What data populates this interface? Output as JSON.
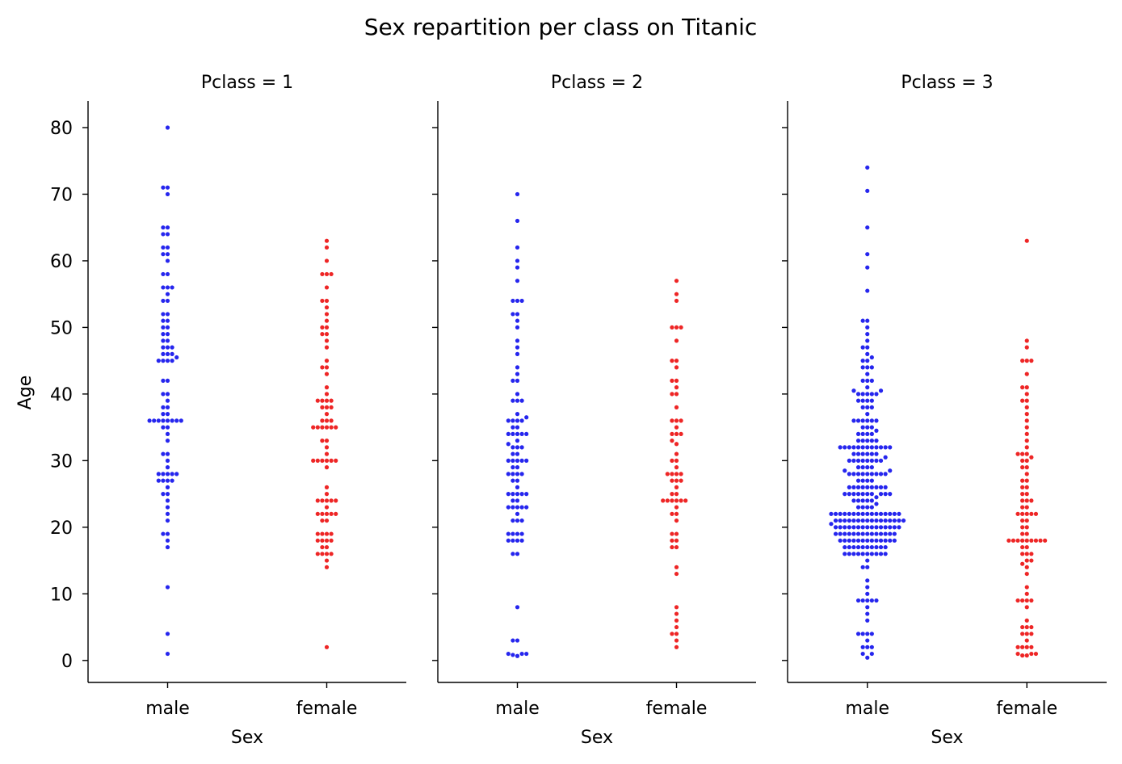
{
  "chart_data": {
    "type": "swarm",
    "title": "Sex repartition per class on Titanic",
    "ylabel": "Age",
    "xlabel": "Sex",
    "categories": [
      "male",
      "female"
    ],
    "ylim": [
      -3.3,
      84
    ],
    "yticks": [
      0,
      10,
      20,
      30,
      40,
      50,
      60,
      70,
      80
    ],
    "colors": {
      "male": "#2626ee",
      "female": "#ee2626"
    },
    "facets": [
      {
        "label": "Pclass = 1",
        "series": [
          {
            "name": "male",
            "ages": [
              80,
              71,
              71,
              70,
              65,
              65,
              64,
              64,
              62,
              62,
              61,
              61,
              60,
              58,
              58,
              56,
              56,
              56,
              55,
              54,
              54,
              52,
              52,
              51,
              51,
              50,
              50,
              49,
              49,
              48,
              48,
              47,
              47,
              47,
              46,
              46,
              46,
              45.5,
              45,
              45,
              45,
              45,
              42,
              42,
              40,
              40,
              39,
              38,
              38,
              37,
              37,
              36,
              36,
              36,
              36,
              36,
              36,
              36,
              36,
              35,
              35,
              34,
              33,
              31,
              31,
              30,
              29,
              28,
              28,
              28,
              28,
              28,
              27,
              27,
              27,
              27,
              26,
              25,
              25,
              24,
              23,
              22,
              21,
              19,
              19,
              18,
              17,
              11,
              4,
              1
            ]
          },
          {
            "name": "female",
            "ages": [
              63,
              62,
              60,
              58,
              58,
              58,
              56,
              54,
              54,
              53,
              52,
              51,
              50,
              50,
              49,
              49,
              48,
              47,
              45,
              44,
              44,
              43,
              41,
              40,
              39,
              39,
              39,
              39,
              38,
              38,
              38,
              37,
              36,
              36,
              36,
              35,
              35,
              35,
              35,
              35,
              35,
              33,
              33,
              32,
              31,
              30,
              30,
              30,
              30,
              30,
              30,
              29,
              26,
              25,
              24,
              24,
              24,
              24,
              24,
              23,
              22,
              22,
              22,
              22,
              22,
              21,
              21,
              19,
              19,
              19,
              19,
              18,
              18,
              18,
              18,
              17,
              17,
              16,
              16,
              16,
              16,
              15,
              14,
              2
            ]
          }
        ]
      },
      {
        "label": "Pclass = 2",
        "series": [
          {
            "name": "male",
            "ages": [
              70,
              66,
              62,
              60,
              59,
              57,
              54,
              54,
              54,
              52,
              52,
              51,
              50,
              48,
              47,
              46,
              44,
              43,
              42,
              42,
              40,
              39,
              39,
              39,
              37,
              36.5,
              36,
              36,
              36,
              36,
              35,
              35,
              34,
              34,
              34,
              34,
              34,
              33,
              32.5,
              32,
              32,
              32,
              31,
              31,
              30,
              30,
              30,
              30,
              30,
              29,
              29,
              28,
              28,
              28,
              28,
              27,
              27,
              26,
              25,
              25,
              25,
              25,
              25,
              24,
              24,
              23,
              23,
              23,
              23,
              23,
              22,
              21,
              21,
              21,
              19,
              19,
              19,
              19,
              18,
              18,
              18,
              18,
              16,
              16,
              8,
              3,
              3,
              1,
              1,
              1,
              0.83,
              0.67
            ]
          },
          {
            "name": "female",
            "ages": [
              57,
              55,
              54,
              50,
              50,
              50,
              48,
              45,
              45,
              44,
              42,
              42,
              41,
              40,
              40,
              38,
              36,
              36,
              36,
              35,
              34,
              34,
              34,
              33,
              32.5,
              31,
              30,
              30,
              29,
              28,
              28,
              28,
              28,
              27,
              27,
              27,
              26,
              25,
              25,
              24,
              24,
              24,
              24,
              24,
              24,
              23,
              22,
              22,
              21,
              19,
              19,
              18,
              18,
              17,
              17,
              14,
              13,
              8,
              7,
              6,
              5,
              4,
              4,
              3,
              2
            ]
          }
        ]
      },
      {
        "label": "Pclass = 3",
        "series": [
          {
            "name": "male",
            "ages": [
              74,
              70.5,
              65,
              61,
              59,
              55.5,
              51,
              51,
              50,
              49,
              48,
              47,
              47,
              46,
              45.5,
              45,
              45,
              44,
              44,
              44,
              43,
              42,
              42,
              42,
              41,
              40.5,
              40.5,
              40,
              40,
              40,
              40,
              40,
              39,
              39,
              39,
              39,
              38,
              38,
              38,
              37,
              36,
              36,
              36,
              36,
              36,
              36,
              35,
              35,
              35,
              34.5,
              34,
              34,
              34,
              34,
              33,
              33,
              33,
              33,
              33,
              32,
              32,
              32,
              32,
              32,
              32,
              32,
              32,
              32,
              32,
              32,
              32,
              31,
              31,
              31,
              31,
              31,
              31,
              30.5,
              30,
              30,
              30,
              30,
              30,
              30,
              30,
              30,
              29,
              29,
              29,
              29,
              28.5,
              28.5,
              28,
              28,
              28,
              28,
              28,
              28,
              28,
              28,
              28,
              27,
              27,
              27,
              27,
              26,
              26,
              26,
              26,
              26,
              26,
              26,
              26,
              26,
              25,
              25,
              25,
              25,
              25,
              25,
              25,
              25,
              25,
              25,
              24.5,
              24,
              24,
              24,
              24,
              24,
              23.5,
              23,
              23,
              23,
              23,
              22,
              22,
              22,
              22,
              22,
              22,
              22,
              22,
              22,
              22,
              22,
              22,
              22,
              22,
              22,
              22,
              21,
              21,
              21,
              21,
              21,
              21,
              21,
              21,
              21,
              21,
              21,
              21,
              21,
              21,
              21,
              21,
              20.5,
              20,
              20,
              20,
              20,
              20,
              20,
              20,
              20,
              20,
              20,
              20,
              20,
              20,
              20,
              20,
              19,
              19,
              19,
              19,
              19,
              19,
              19,
              19,
              19,
              19,
              19,
              19,
              19,
              19,
              18,
              18,
              18,
              18,
              18,
              18,
              18,
              18,
              18,
              18,
              18,
              18,
              18,
              17,
              17,
              17,
              17,
              17,
              17,
              17,
              17,
              17,
              17,
              16,
              16,
              16,
              16,
              16,
              16,
              16,
              16,
              16,
              16,
              15,
              14,
              14,
              12,
              11,
              10,
              9,
              9,
              9,
              9,
              9,
              8,
              7,
              6,
              4,
              4,
              4,
              4,
              3,
              2,
              2,
              2,
              1,
              1,
              0.42
            ]
          },
          {
            "name": "female",
            "ages": [
              63,
              48,
              47,
              45,
              45,
              45,
              43,
              41,
              41,
              40,
              39,
              39,
              38,
              37,
              36,
              35,
              34,
              33,
              32,
              31,
              31,
              31,
              30.5,
              30,
              30,
              29,
              29,
              28,
              27,
              27,
              26,
              26,
              25,
              25,
              24,
              24,
              24,
              23,
              23,
              22,
              22,
              22,
              22,
              22,
              21,
              21,
              20,
              20,
              19,
              19,
              18,
              18,
              18,
              18,
              18,
              18,
              18,
              18,
              18,
              17,
              17,
              16,
              16,
              16,
              15,
              15,
              14.5,
              14,
              13,
              11,
              10,
              9,
              9,
              9,
              9,
              8,
              6,
              5,
              5,
              5,
              4,
              4,
              4,
              3,
              2,
              2,
              2,
              2,
              1,
              1,
              1,
              0.75,
              0.75
            ]
          }
        ]
      }
    ]
  }
}
